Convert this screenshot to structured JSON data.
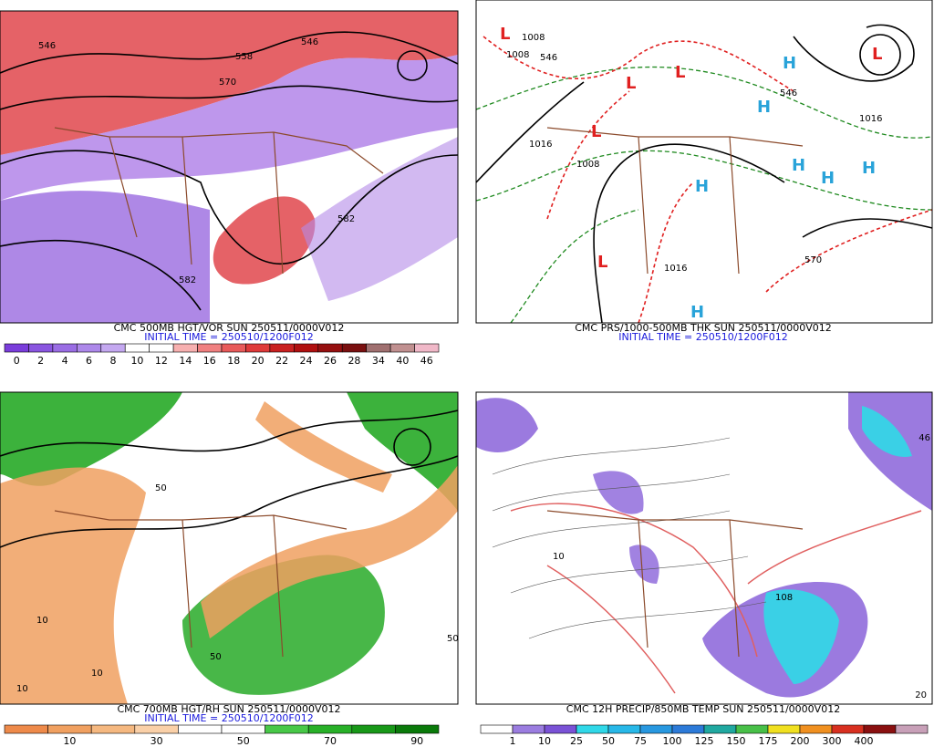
{
  "panels": [
    {
      "title": "CMC 500MB HGT/VOR SUN 250511/0000V012",
      "subtitle": "INITIAL TIME = 250510/1200F012",
      "contour_labels": [
        "546",
        "558",
        "570",
        "582"
      ],
      "colorbar": {
        "labels": [
          0,
          2,
          4,
          6,
          8,
          10,
          12,
          14,
          16,
          18,
          20,
          22,
          24,
          26,
          28,
          34,
          40,
          46
        ],
        "colors": [
          "#7a3ddb",
          "#8a55e0",
          "#9a6de4",
          "#ad88ea",
          "#c4a8f0",
          "#ffffff",
          "#ffffff",
          "#f7b0b0",
          "#f08080",
          "#e85a5a",
          "#df3a3a",
          "#c92020",
          "#b01010",
          "#961010",
          "#7a1010",
          "#a07070",
          "#c09090",
          "#f0b8c8"
        ]
      }
    },
    {
      "title": "CMC PRS/1000-500MB THK SUN 250511/0000V012",
      "subtitle": "INITIAL TIME = 250510/1200F012",
      "low": "L",
      "high": "H",
      "contour_labels": [
        "1008",
        "1016",
        "546",
        "570"
      ]
    },
    {
      "title": "CMC 700MB HGT/RH SUN 250511/0000V012",
      "subtitle": "INITIAL TIME = 250510/1200F012",
      "contour_labels": [
        "10",
        "50"
      ],
      "colorbar": {
        "labels": [
          10,
          30,
          50,
          70,
          90
        ],
        "colors": [
          "#ee8a4a",
          "#f0a060",
          "#f5b880",
          "#fad0a8",
          "#ffffff",
          "#ffffff",
          "#48c848",
          "#28b028",
          "#189818",
          "#0a7a0a"
        ]
      }
    },
    {
      "title": "CMC 12H PRECIP/850MB TEMP SUN 250511/0000V012",
      "contour_labels": [
        "46",
        "20",
        "10",
        "108"
      ],
      "colorbar": {
        "labels": [
          1,
          10,
          25,
          50,
          75,
          100,
          125,
          150,
          175,
          200,
          300,
          400
        ],
        "colors": [
          "#ffffff",
          "#9b7de0",
          "#7a52d6",
          "#30d8e8",
          "#28b8e8",
          "#2898e0",
          "#2c7ad8",
          "#20a8a0",
          "#48c048",
          "#f0e020",
          "#f09020",
          "#d83020",
          "#8a1010",
          "#c8a0b8"
        ]
      }
    }
  ]
}
